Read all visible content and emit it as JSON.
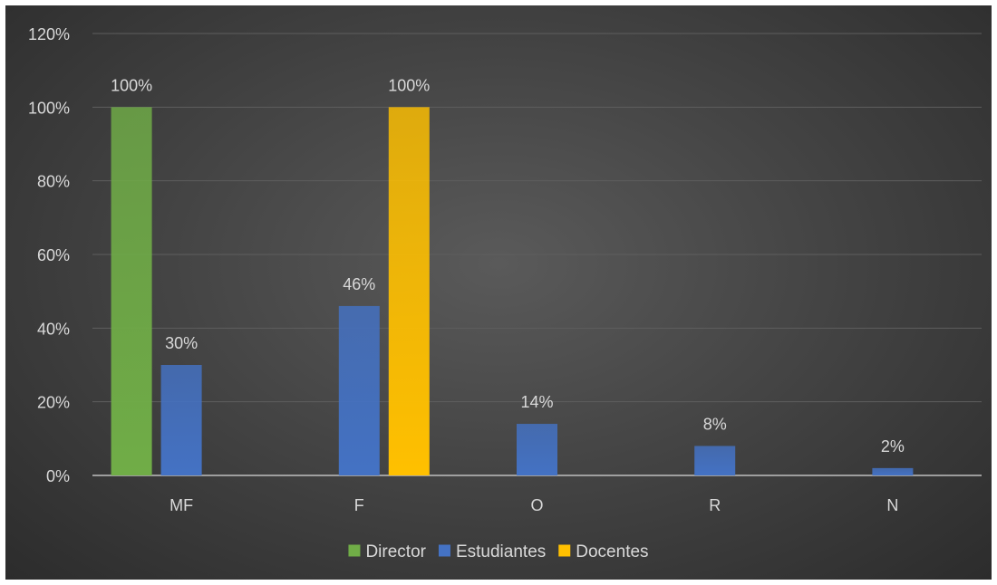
{
  "chart_data": {
    "type": "bar",
    "title": "",
    "xlabel": "",
    "ylabel": "",
    "categories": [
      "MF",
      "F",
      "O",
      "R",
      "N"
    ],
    "series": [
      {
        "name": "Director",
        "values": [
          100,
          null,
          null,
          null,
          null
        ],
        "labels": [
          "100%",
          "",
          "",
          "",
          ""
        ],
        "color": "#70ad47"
      },
      {
        "name": "Estudiantes",
        "values": [
          30,
          46,
          14,
          8,
          2
        ],
        "labels": [
          "30%",
          "46%",
          "14%",
          "8%",
          "2%"
        ],
        "color": "#4472c4"
      },
      {
        "name": "Docentes",
        "values": [
          null,
          100,
          null,
          null,
          null
        ],
        "labels": [
          "",
          "100%",
          "",
          "",
          ""
        ],
        "color": "#ffc000"
      }
    ],
    "ylim": [
      0,
      120
    ],
    "yticks": [
      0,
      20,
      40,
      60,
      80,
      100,
      120
    ],
    "ytick_labels": [
      "0%",
      "20%",
      "40%",
      "60%",
      "80%",
      "100%",
      "120%"
    ],
    "grid": true,
    "legend": "bottom",
    "background": "#404040"
  }
}
